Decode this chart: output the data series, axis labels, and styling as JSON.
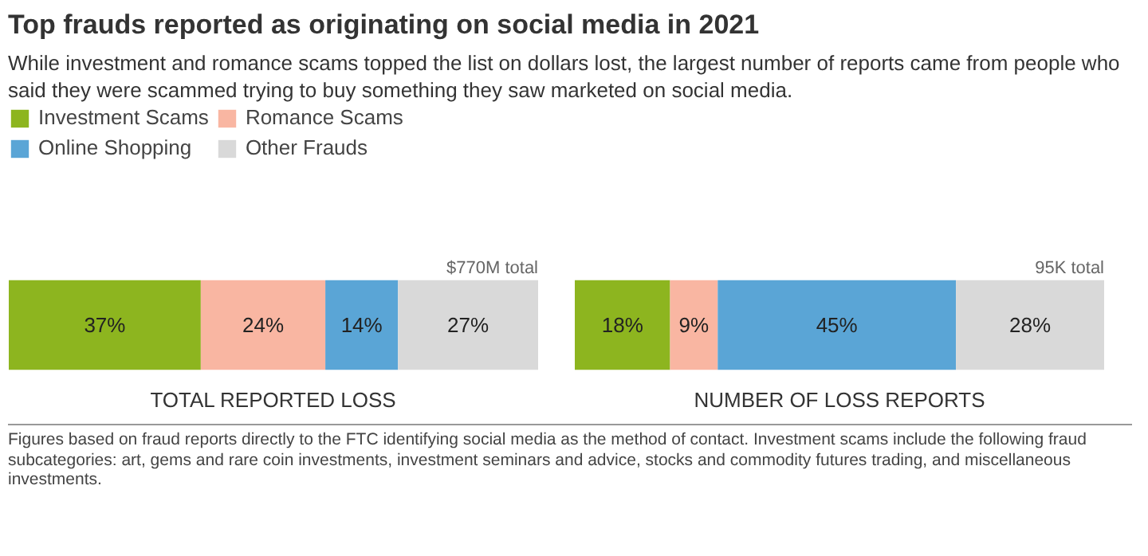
{
  "chart_data": [
    {
      "type": "bar",
      "orientation": "horizontal",
      "stacked": true,
      "title": "Top frauds reported as originating on social media in 2021",
      "subtitle": "While investment and romance scams topped the list on dollars lost, the largest number of reports came from people who said they were scammed trying to buy something they saw marketed on social media.",
      "xlabel": "TOTAL REPORTED LOSS",
      "categories": [
        null
      ],
      "legend": "top left",
      "series": [
        {
          "name": "Investment Scams",
          "color": "#8db51f",
          "values": [
            37
          ],
          "value_labels": [
            "37%"
          ]
        },
        {
          "name": "Romance Scams",
          "color": "#f9b6a2",
          "values": [
            24
          ],
          "value_labels": [
            "24%"
          ]
        },
        {
          "name": "Online Shopping",
          "color": "#5aa5d6",
          "values": [
            14
          ],
          "value_labels": [
            "14%"
          ]
        },
        {
          "name": "Other Frauds",
          "color": "#d9d9d9",
          "values": [
            27
          ],
          "value_labels": [
            "27%"
          ]
        }
      ],
      "annotations": [
        "$770M total"
      ]
    },
    {
      "type": "bar",
      "orientation": "horizontal",
      "stacked": true,
      "xlabel": "NUMBER OF LOSS REPORTS",
      "categories": [
        null
      ],
      "series": [
        {
          "color": "#8db51f",
          "values": [
            18
          ],
          "value_labels": [
            "18%"
          ]
        },
        {
          "color": "#f9b6a2",
          "values": [
            9
          ],
          "value_labels": [
            "9%"
          ]
        },
        {
          "color": "#5aa5d6",
          "values": [
            45
          ],
          "value_labels": [
            "45%"
          ]
        },
        {
          "color": "#d9d9d9",
          "values": [
            28
          ],
          "value_labels": [
            "28%"
          ]
        }
      ],
      "annotations": [
        "95K total",
        "Figures based on fraud reports directly to the FTC identifying social media as the method of contact. Investment scams include the following fraud subcategories: art, gems and rare coin investments, investment seminars and advice, stocks and commodity futures trading, and miscellaneous investments."
      ]
    }
  ]
}
